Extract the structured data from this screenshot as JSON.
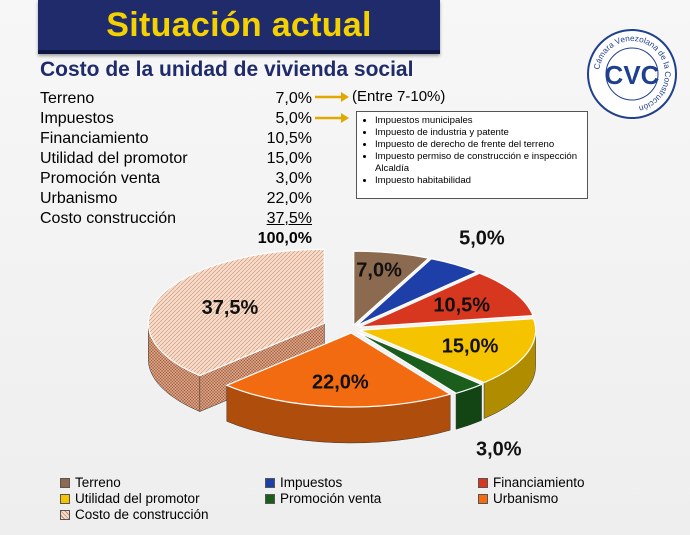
{
  "title": "Situación actual",
  "subtitle": "Costo de la unidad de vivienda social",
  "costs": [
    {
      "label": "Terreno",
      "value": "7,0%"
    },
    {
      "label": "Impuestos",
      "value": "5,0%"
    },
    {
      "label": "Financiamiento",
      "value": "10,5%"
    },
    {
      "label": "Utilidad del promotor",
      "value": "15,0%"
    },
    {
      "label": "Promoción venta",
      "value": "3,0%"
    },
    {
      "label": "Urbanismo",
      "value": "22,0%"
    },
    {
      "label": "Costo construcción",
      "value": "37,5%"
    }
  ],
  "total": "100,0%",
  "terreno_note": "(Entre 7-10%)",
  "tax_items": [
    "Impuestos municipales",
    "Impuesto de industria y patente",
    "Impuesto de derecho de frente del terreno",
    "Impuesto permiso de construcción e inspección Alcaldía",
    "Impuesto habitabilidad"
  ],
  "logo": {
    "ring_text": "Cámara Venezolana de la Construcción",
    "letters": "CVC",
    "icon": "cvc-logo"
  },
  "colors": {
    "title_bg": "#1f2b6b",
    "title_text": "#f4d100",
    "arrow": "#e0a800"
  },
  "chart_data": {
    "type": "pie",
    "title": "",
    "series": [
      {
        "values": [
          7.0,
          5.0,
          10.5,
          15.0,
          3.0,
          22.0,
          37.5
        ],
        "labels": [
          "7,0%",
          "5,0%",
          "10,5%",
          "15,0%",
          "3,0%",
          "22,0%",
          "37,5%"
        ]
      }
    ],
    "categories": [
      "Terreno",
      "Impuestos",
      "Financiamiento",
      "Utilidad del promotor",
      "Promoción venta",
      "Urbanismo",
      "Costo de construcción"
    ],
    "colors": [
      "#8b6a50",
      "#1f3fa8",
      "#d8371f",
      "#f5c300",
      "#1b5e1b",
      "#f26b10",
      "#f2c9b0"
    ],
    "exploded": "Costo de construcción",
    "style": "3d",
    "legend_position": "bottom"
  }
}
